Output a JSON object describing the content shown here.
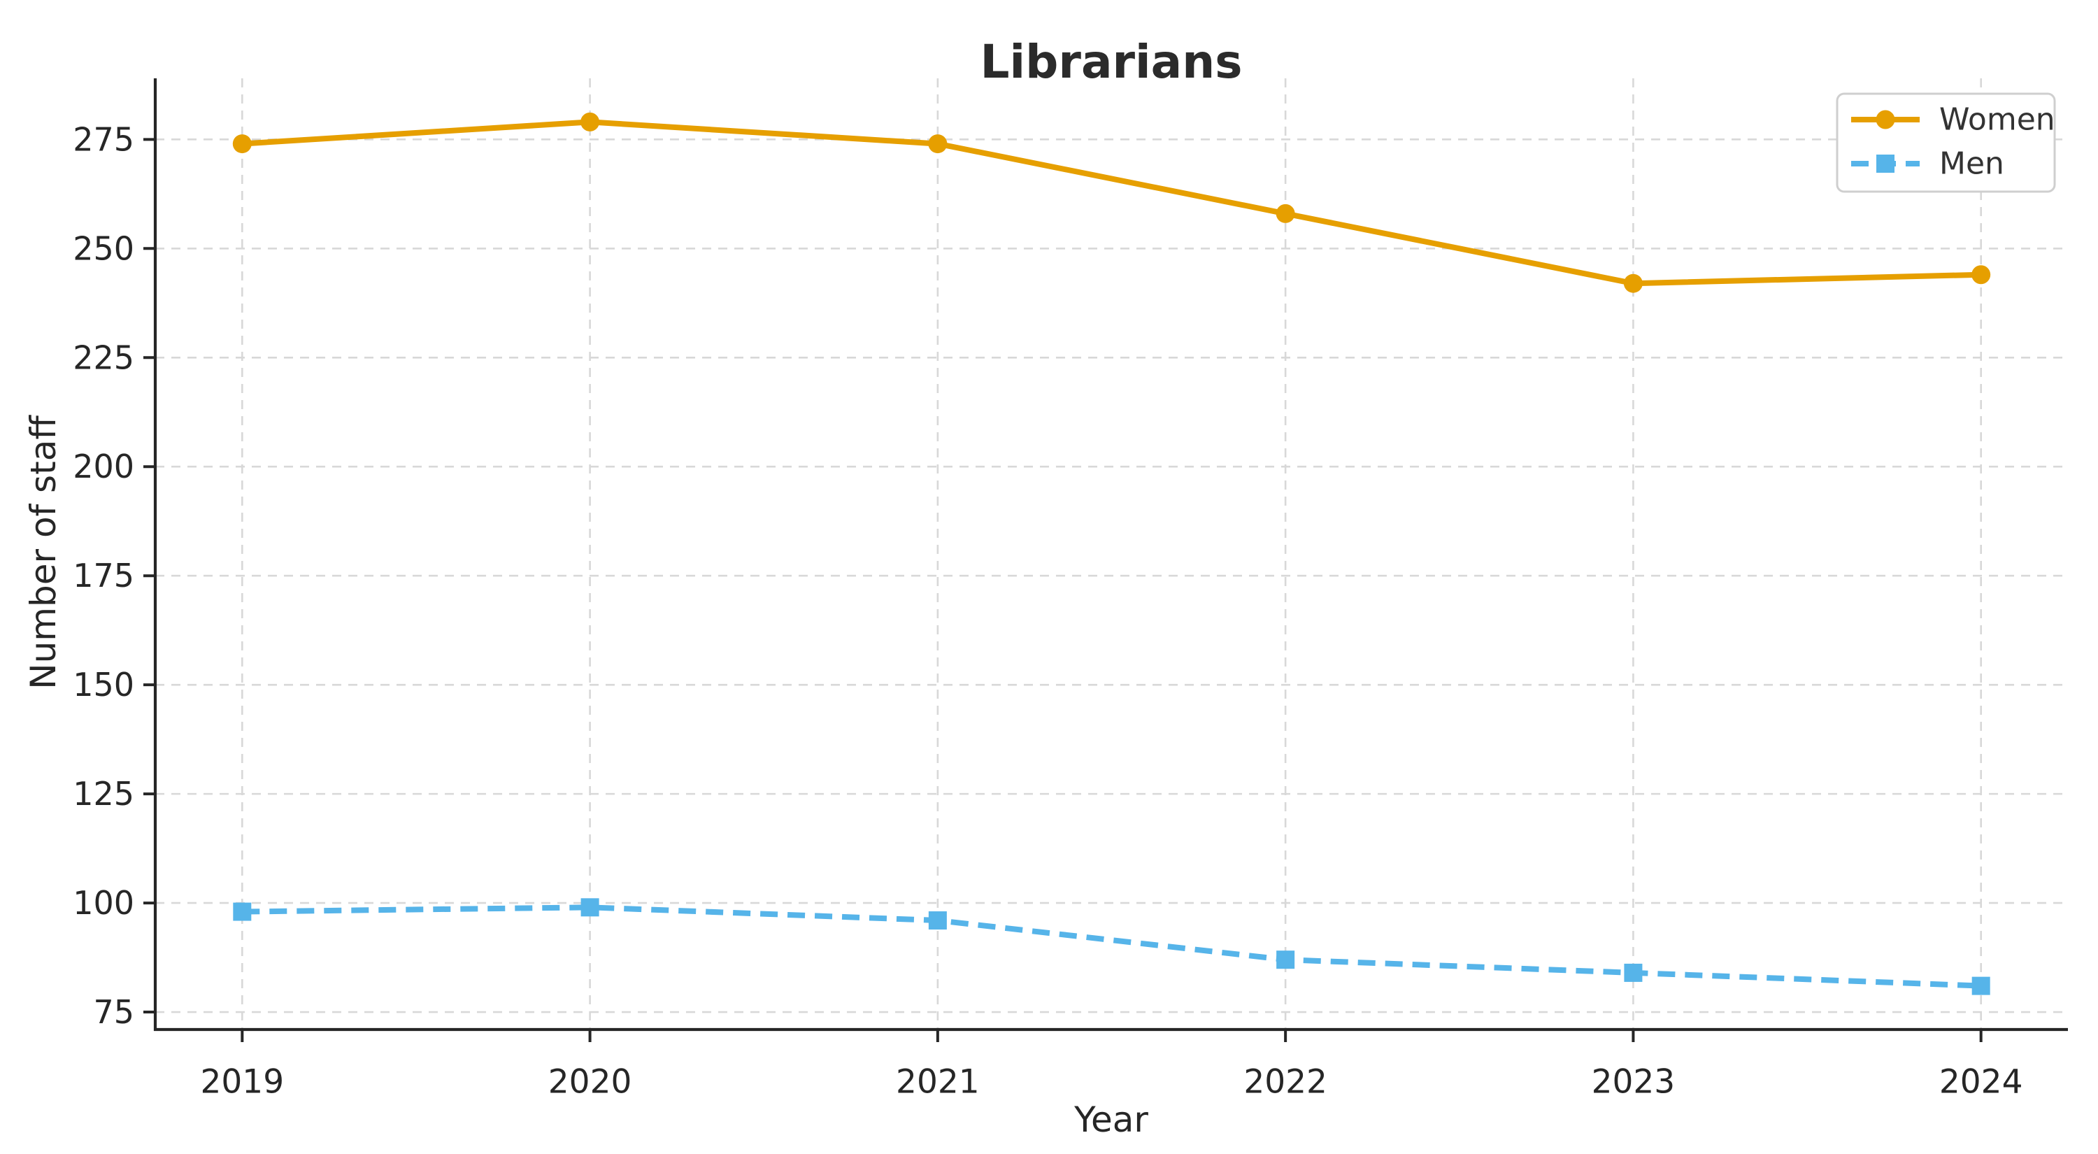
{
  "figure": {
    "title": "Librarians"
  },
  "chart_data": {
    "type": "line",
    "title": "Librarians",
    "xlabel": "Year",
    "ylabel": "Number of staff",
    "x": [
      2019,
      2020,
      2021,
      2022,
      2023,
      2024
    ],
    "xtick_labels": [
      "2019",
      "2020",
      "2021",
      "2022",
      "2023",
      "2024"
    ],
    "yticks": [
      75,
      100,
      125,
      150,
      175,
      200,
      225,
      250,
      275
    ],
    "ylim": [
      71,
      289
    ],
    "xlim": [
      2018.75,
      2024.25
    ],
    "grid": true,
    "grid_style": "dashed",
    "legend_position": "upper right",
    "series": [
      {
        "name": "Women",
        "values": [
          274,
          279,
          274,
          258,
          242,
          244
        ],
        "color": "#E69F00",
        "linestyle": "solid",
        "marker": "circle"
      },
      {
        "name": "Men",
        "values": [
          98,
          99,
          96,
          87,
          84,
          81
        ],
        "color": "#56B4E9",
        "linestyle": "dashed",
        "marker": "square"
      }
    ],
    "colors": {
      "grid": "#d8d8d8",
      "spine": "#262626",
      "tick_text": "#262626",
      "title_text": "#2b2b2b",
      "legend_border": "#cfcfcf",
      "legend_bg": "#ffffff",
      "background": "#ffffff"
    }
  }
}
